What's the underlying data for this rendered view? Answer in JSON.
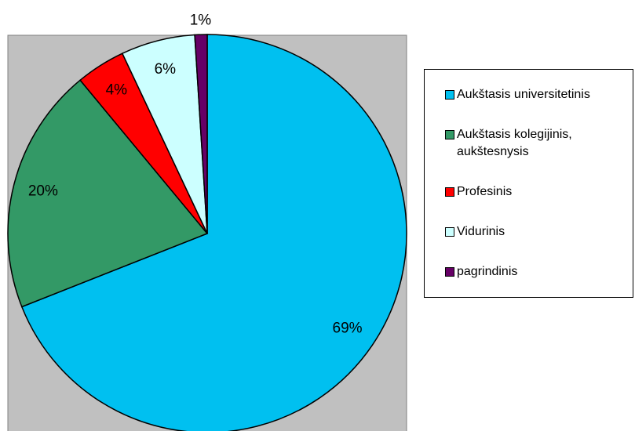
{
  "chart_data": {
    "type": "pie",
    "categories": [
      "Aukštasis universitetinis",
      "Aukštasis kolegijinis, aukštesnysis",
      "Profesinis",
      "Vidurinis",
      "pagrindinis"
    ],
    "values": [
      69,
      20,
      4,
      6,
      1
    ],
    "colors": [
      "#00c0f0",
      "#339966",
      "#ff0000",
      "#ccffff",
      "#660066"
    ],
    "legend": "right"
  }
}
